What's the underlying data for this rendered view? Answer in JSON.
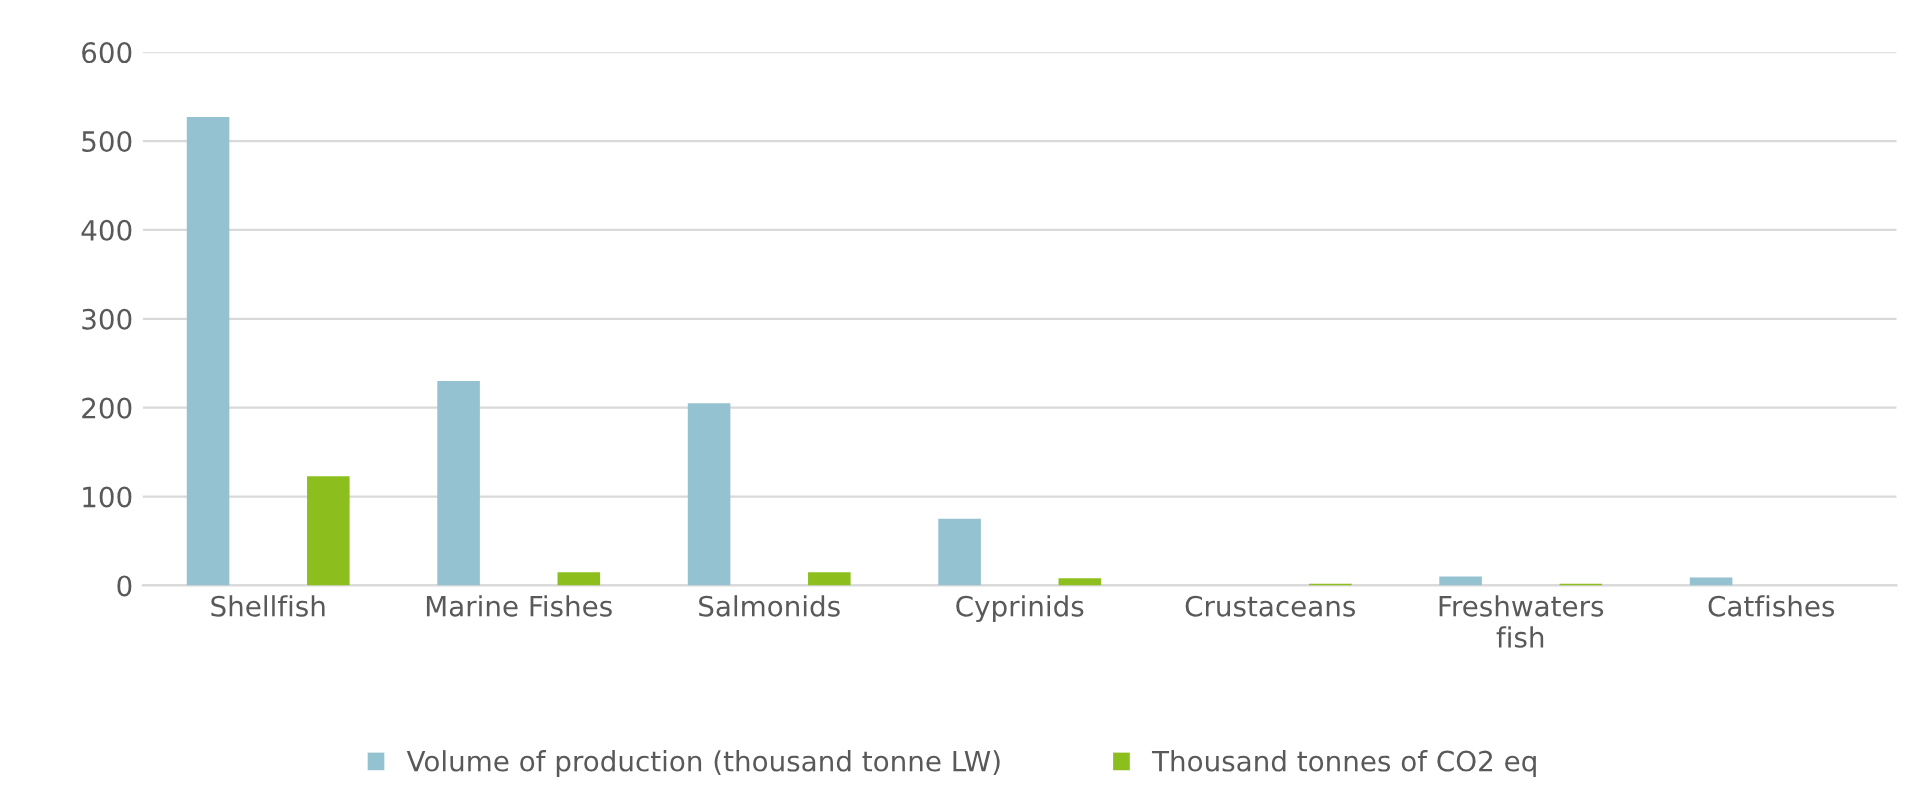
{
  "chart_data": {
    "type": "bar",
    "categories": [
      "Shellfish",
      "Marine Fishes",
      "Salmonids",
      "Cyprinids",
      "Crustaceans",
      "Freshwaters\nfish",
      "Catfishes"
    ],
    "series": [
      {
        "name": "Volume of production (thousand tonne LW)",
        "color": "#94c2d1",
        "values": [
          527,
          230,
          205,
          75,
          null,
          10,
          9
        ]
      },
      {
        "name": "Thousand tonnes of CO2 eq",
        "color": "#8cbf1e",
        "values": [
          123,
          15,
          15,
          8,
          2,
          2,
          0
        ]
      }
    ],
    "ylim": [
      0,
      600
    ],
    "yticks": [
      0,
      100,
      200,
      300,
      400,
      500,
      600
    ],
    "grid": "y",
    "legend": "bottom"
  }
}
